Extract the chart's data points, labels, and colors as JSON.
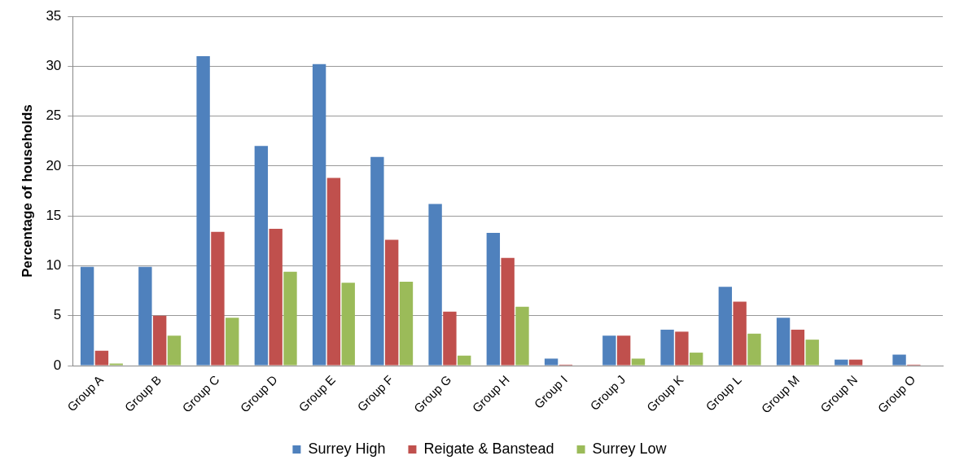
{
  "chart_data": {
    "type": "bar",
    "ylabel": "Percentage of households",
    "categories": [
      "Group A",
      "Group B",
      "Group C",
      "Group D",
      "Group E",
      "Group F",
      "Group G",
      "Group H",
      "Group I",
      "Group J",
      "Group K",
      "Group L",
      "Group M",
      "Group N",
      "Group O"
    ],
    "series": [
      {
        "name": "Surrey High",
        "color": "#4f81bd",
        "values": [
          9.9,
          9.9,
          31,
          22,
          30.2,
          20.9,
          16.2,
          13.3,
          0.7,
          3.0,
          3.6,
          7.9,
          4.8,
          0.6,
          1.1
        ]
      },
      {
        "name": "Reigate & Banstead",
        "color": "#c0504d",
        "values": [
          1.5,
          5.0,
          13.4,
          13.7,
          18.8,
          12.6,
          5.4,
          10.8,
          0.1,
          3.0,
          3.4,
          6.4,
          3.6,
          0.6,
          0.1
        ]
      },
      {
        "name": "Surrey Low",
        "color": "#9bbb59",
        "values": [
          0.2,
          3.0,
          4.8,
          9.4,
          8.3,
          8.4,
          1.0,
          5.9,
          0,
          0.7,
          1.3,
          3.2,
          2.6,
          0,
          0
        ]
      }
    ],
    "ylim": [
      0,
      35
    ],
    "yticks": [
      0,
      5,
      10,
      15,
      20,
      25,
      30,
      35
    ],
    "grid": "y",
    "legend": "bottom"
  }
}
